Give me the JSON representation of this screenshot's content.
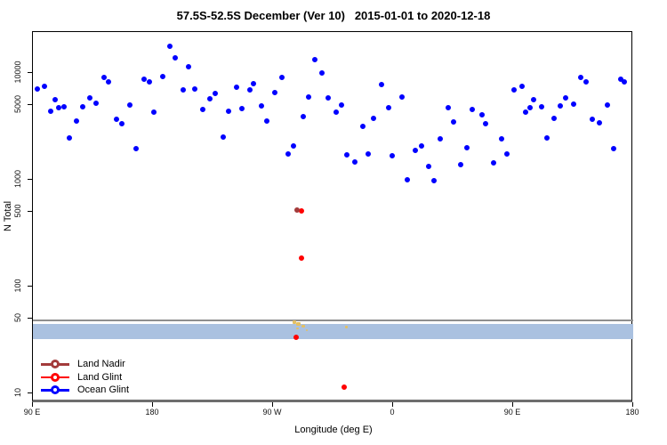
{
  "chart_data": {
    "type": "scatter",
    "title": "57.5S-52.5S December (Ver 10)   2015-01-01 to 2020-12-18",
    "xlabel": "Longitude (deg E)",
    "ylabel": "N Total",
    "x_axis": {
      "note": "longitude axis spans 450 degrees eastward starting at 90E",
      "tick_positions_deg": [
        90,
        180,
        270,
        360,
        450,
        540
      ],
      "tick_labels": [
        "90 E",
        "180",
        "90 W",
        "0",
        "90 E",
        "180"
      ],
      "range_deg": [
        90,
        540
      ]
    },
    "y_axis": {
      "scale": "log10",
      "tick_values": [
        10,
        50,
        100,
        500,
        1000,
        5000,
        10000
      ],
      "tick_labels": [
        "10",
        "50",
        "100",
        "500",
        "1000",
        "5000",
        "10000"
      ],
      "range": [
        8.1,
        24000
      ]
    },
    "grid": false,
    "legend_position": "bottom-left",
    "reference_line_n": 48.5,
    "reference_band_n": [
      32,
      45
    ],
    "reference_line_color": "#8f8f8f",
    "reference_band_color": "#aac1e0",
    "series": [
      {
        "name": "Ocean Glint",
        "color": "#0000ff",
        "marker": "open-circle",
        "points": [
          [
            95,
            6700
          ],
          [
            100,
            7200
          ],
          [
            108,
            5400
          ],
          [
            105,
            4200
          ],
          [
            111,
            4550
          ],
          [
            115,
            4600
          ],
          [
            124,
            3400
          ],
          [
            119,
            2370
          ],
          [
            129,
            4600
          ],
          [
            134,
            5600
          ],
          [
            139,
            5000
          ],
          [
            145,
            8600
          ],
          [
            148,
            7900
          ],
          [
            154,
            3500
          ],
          [
            158,
            3200
          ],
          [
            164,
            4800
          ],
          [
            169,
            1880
          ],
          [
            175,
            8300
          ],
          [
            179,
            7900
          ],
          [
            182,
            4100
          ],
          [
            194,
            16800
          ],
          [
            198,
            13300
          ],
          [
            208,
            10800
          ],
          [
            189,
            8900
          ],
          [
            204,
            6600
          ],
          [
            213,
            6800
          ],
          [
            224,
            5500
          ],
          [
            228,
            6100
          ],
          [
            219,
            4300
          ],
          [
            238,
            4200
          ],
          [
            244,
            7000
          ],
          [
            248,
            4400
          ],
          [
            254,
            6600
          ],
          [
            257,
            7600
          ],
          [
            263,
            4700
          ],
          [
            267,
            3400
          ],
          [
            234,
            2400
          ],
          [
            303,
            12600
          ],
          [
            308,
            9600
          ],
          [
            278,
            8700
          ],
          [
            273,
            6200
          ],
          [
            298,
            5700
          ],
          [
            313,
            5600
          ],
          [
            323,
            4800
          ],
          [
            319,
            4100
          ],
          [
            294,
            3700
          ],
          [
            353,
            7400
          ],
          [
            358,
            4500
          ],
          [
            347,
            3600
          ],
          [
            339,
            3000
          ],
          [
            287,
            1960
          ],
          [
            283,
            1650
          ],
          [
            327,
            1620
          ],
          [
            333,
            1410
          ],
          [
            343,
            1650
          ],
          [
            368,
            5700
          ],
          [
            403,
            4500
          ],
          [
            421,
            4300
          ],
          [
            428,
            3900
          ],
          [
            431,
            3200
          ],
          [
            407,
            3300
          ],
          [
            397,
            2300
          ],
          [
            417,
            1920
          ],
          [
            383,
            1960
          ],
          [
            378,
            1780
          ],
          [
            361,
            1600
          ],
          [
            388,
            1260
          ],
          [
            412,
            1330
          ],
          [
            437,
            1360
          ],
          [
            443,
            2300
          ],
          [
            447,
            1650
          ],
          [
            372,
            960
          ],
          [
            392,
            930
          ],
          [
            452,
            6600
          ],
          [
            458,
            7100
          ],
          [
            467,
            5400
          ],
          [
            464,
            4500
          ],
          [
            473,
            4600
          ],
          [
            461,
            4100
          ],
          [
            482,
            3600
          ],
          [
            487,
            4700
          ],
          [
            491,
            5600
          ],
          [
            497,
            4900
          ],
          [
            502,
            8600
          ],
          [
            506,
            7900
          ],
          [
            522,
            4800
          ],
          [
            511,
            3500
          ],
          [
            516,
            3250
          ],
          [
            477,
            2370
          ],
          [
            527,
            1850
          ],
          [
            532,
            8300
          ],
          [
            535,
            7900
          ]
        ]
      },
      {
        "name": "Land Glint",
        "color": "#ff0000",
        "marker": "open-circle",
        "points": [
          [
            292.8,
            487
          ],
          [
            293,
            175
          ],
          [
            289.3,
            32
          ],
          [
            324.7,
            11
          ]
        ]
      },
      {
        "name": "Land Nadir",
        "color": "#a33b3b",
        "marker": "open-circle",
        "points": [
          [
            289.7,
            500
          ]
        ]
      }
    ],
    "gold_marks": [
      {
        "lon": 286,
        "n": 46,
        "size": 4
      },
      {
        "lon": 289.3,
        "n": 44,
        "size": 5
      },
      {
        "lon": 288,
        "n": 40.5,
        "size": 3
      },
      {
        "lon": 292.7,
        "n": 42.3,
        "size": 4
      },
      {
        "lon": 295.3,
        "n": 39,
        "size": 2
      },
      {
        "lon": 324.7,
        "n": 41.4,
        "size": 3
      }
    ]
  },
  "legend": {
    "items": [
      {
        "label": "Land Nadir",
        "color": "#a33b3b"
      },
      {
        "label": "Land Glint",
        "color": "#ff0000"
      },
      {
        "label": "Ocean Glint",
        "color": "#0000ff"
      }
    ]
  }
}
